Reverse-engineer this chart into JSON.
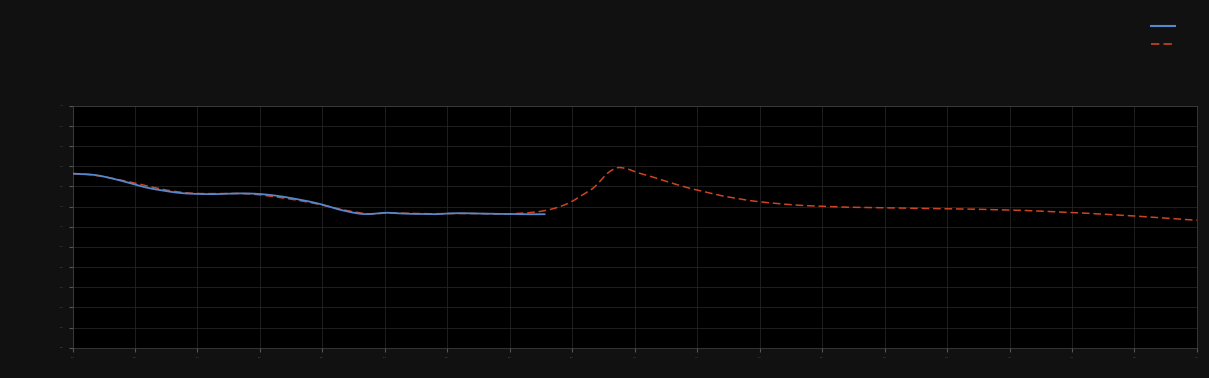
{
  "background_color": "#111111",
  "plot_bg_color": "#000000",
  "grid_color": "#2a2a2a",
  "line1_color": "#5588cc",
  "line2_color": "#cc4422",
  "figsize": [
    12.09,
    3.78
  ],
  "dpi": 100,
  "xlim": [
    0,
    1
  ],
  "ylim": [
    0,
    1
  ],
  "grid_linewidth": 0.5,
  "line1_linewidth": 1.3,
  "line2_linewidth": 1.1,
  "n_xticks": 19,
  "n_yticks": 13
}
